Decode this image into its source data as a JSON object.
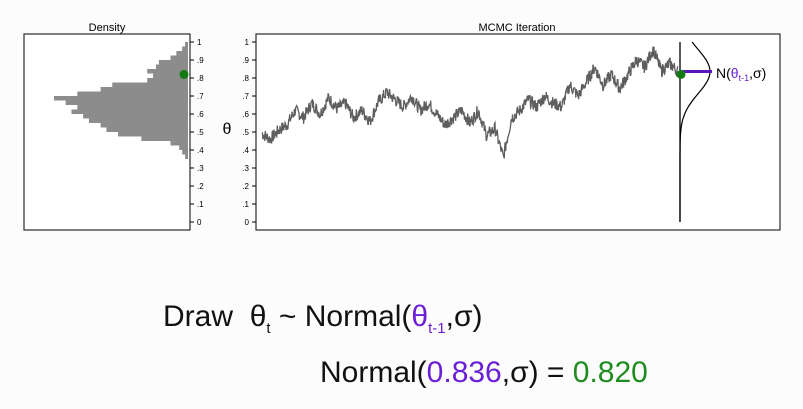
{
  "colors": {
    "trace": "#5e5e5e",
    "hist": "#8c8c8c",
    "current_dot": "#137a13",
    "proposal_segment": "#5a18b8",
    "theta_prev": "#6a1fd6",
    "result": "#1e8c1e"
  },
  "chart_data": [
    {
      "type": "bar",
      "orientation": "horizontal",
      "title": "Density",
      "ylabel": "",
      "ylim": [
        0,
        1
      ],
      "ticks": [
        "0",
        ".1",
        ".2",
        ".3",
        ".4",
        ".5",
        ".6",
        ".7",
        ".8",
        ".9",
        "1"
      ],
      "bins": [
        {
          "lo": 0.35,
          "hi": 0.375,
          "count": 1
        },
        {
          "lo": 0.375,
          "hi": 0.4,
          "count": 2
        },
        {
          "lo": 0.4,
          "hi": 0.425,
          "count": 3
        },
        {
          "lo": 0.425,
          "hi": 0.45,
          "count": 6
        },
        {
          "lo": 0.45,
          "hi": 0.475,
          "count": 16
        },
        {
          "lo": 0.475,
          "hi": 0.5,
          "count": 24
        },
        {
          "lo": 0.5,
          "hi": 0.525,
          "count": 28
        },
        {
          "lo": 0.525,
          "hi": 0.55,
          "count": 30
        },
        {
          "lo": 0.55,
          "hi": 0.575,
          "count": 34
        },
        {
          "lo": 0.575,
          "hi": 0.6,
          "count": 36
        },
        {
          "lo": 0.6,
          "hi": 0.625,
          "count": 40
        },
        {
          "lo": 0.625,
          "hi": 0.65,
          "count": 38
        },
        {
          "lo": 0.65,
          "hi": 0.675,
          "count": 42
        },
        {
          "lo": 0.675,
          "hi": 0.7,
          "count": 46
        },
        {
          "lo": 0.7,
          "hi": 0.725,
          "count": 38
        },
        {
          "lo": 0.725,
          "hi": 0.75,
          "count": 30
        },
        {
          "lo": 0.75,
          "hi": 0.775,
          "count": 26
        },
        {
          "lo": 0.775,
          "hi": 0.8,
          "count": 14
        },
        {
          "lo": 0.8,
          "hi": 0.825,
          "count": 12
        },
        {
          "lo": 0.825,
          "hi": 0.85,
          "count": 14
        },
        {
          "lo": 0.85,
          "hi": 0.875,
          "count": 11
        },
        {
          "lo": 0.875,
          "hi": 0.9,
          "count": 10
        },
        {
          "lo": 0.9,
          "hi": 0.925,
          "count": 6
        },
        {
          "lo": 0.925,
          "hi": 0.95,
          "count": 4
        },
        {
          "lo": 0.95,
          "hi": 0.975,
          "count": 2
        },
        {
          "lo": 0.975,
          "hi": 1.0,
          "count": 1
        }
      ],
      "current_value": 0.82
    },
    {
      "type": "line",
      "title": "MCMC Iteration",
      "ylabel": "θ",
      "ylim": [
        0,
        1
      ],
      "ticks": [
        "0",
        ".1",
        ".2",
        ".3",
        ".4",
        ".5",
        ".6",
        ".7",
        ".8",
        ".9",
        "1"
      ],
      "trace_keypoints": [
        [
          0,
          0.49
        ],
        [
          0.02,
          0.46
        ],
        [
          0.04,
          0.51
        ],
        [
          0.06,
          0.54
        ],
        [
          0.08,
          0.62
        ],
        [
          0.1,
          0.58
        ],
        [
          0.12,
          0.66
        ],
        [
          0.14,
          0.6
        ],
        [
          0.16,
          0.69
        ],
        [
          0.18,
          0.63
        ],
        [
          0.2,
          0.66
        ],
        [
          0.22,
          0.58
        ],
        [
          0.24,
          0.62
        ],
        [
          0.26,
          0.56
        ],
        [
          0.28,
          0.67
        ],
        [
          0.3,
          0.72
        ],
        [
          0.32,
          0.68
        ],
        [
          0.34,
          0.64
        ],
        [
          0.36,
          0.7
        ],
        [
          0.38,
          0.62
        ],
        [
          0.4,
          0.66
        ],
        [
          0.42,
          0.6
        ],
        [
          0.44,
          0.54
        ],
        [
          0.46,
          0.58
        ],
        [
          0.48,
          0.62
        ],
        [
          0.5,
          0.55
        ],
        [
          0.52,
          0.62
        ],
        [
          0.54,
          0.48
        ],
        [
          0.56,
          0.52
        ],
        [
          0.58,
          0.36
        ],
        [
          0.6,
          0.58
        ],
        [
          0.62,
          0.62
        ],
        [
          0.64,
          0.68
        ],
        [
          0.66,
          0.64
        ],
        [
          0.68,
          0.7
        ],
        [
          0.7,
          0.66
        ],
        [
          0.72,
          0.64
        ],
        [
          0.74,
          0.76
        ],
        [
          0.76,
          0.7
        ],
        [
          0.78,
          0.78
        ],
        [
          0.8,
          0.86
        ],
        [
          0.82,
          0.76
        ],
        [
          0.84,
          0.82
        ],
        [
          0.86,
          0.74
        ],
        [
          0.88,
          0.82
        ],
        [
          0.9,
          0.9
        ],
        [
          0.92,
          0.86
        ],
        [
          0.94,
          0.96
        ],
        [
          0.96,
          0.84
        ],
        [
          0.98,
          0.88
        ],
        [
          1.0,
          0.836
        ]
      ],
      "current_value": 0.82,
      "proposal_mean": 0.836,
      "proposal_label": {
        "prefix": "N(",
        "theta": "θ",
        "sub": "t-1",
        "suffix": ",σ)"
      }
    }
  ],
  "equation1": {
    "draw": "Draw",
    "theta": "θ",
    "sub_t": "t",
    "tilde_normal": " ~ Normal(",
    "theta_prev": "θ",
    "sub_prev": "t-1",
    "close": ",σ)"
  },
  "equation2": {
    "normal_open": "Normal(",
    "mean": "0.836",
    "close_eq": ",σ) = ",
    "result": "0.820"
  }
}
